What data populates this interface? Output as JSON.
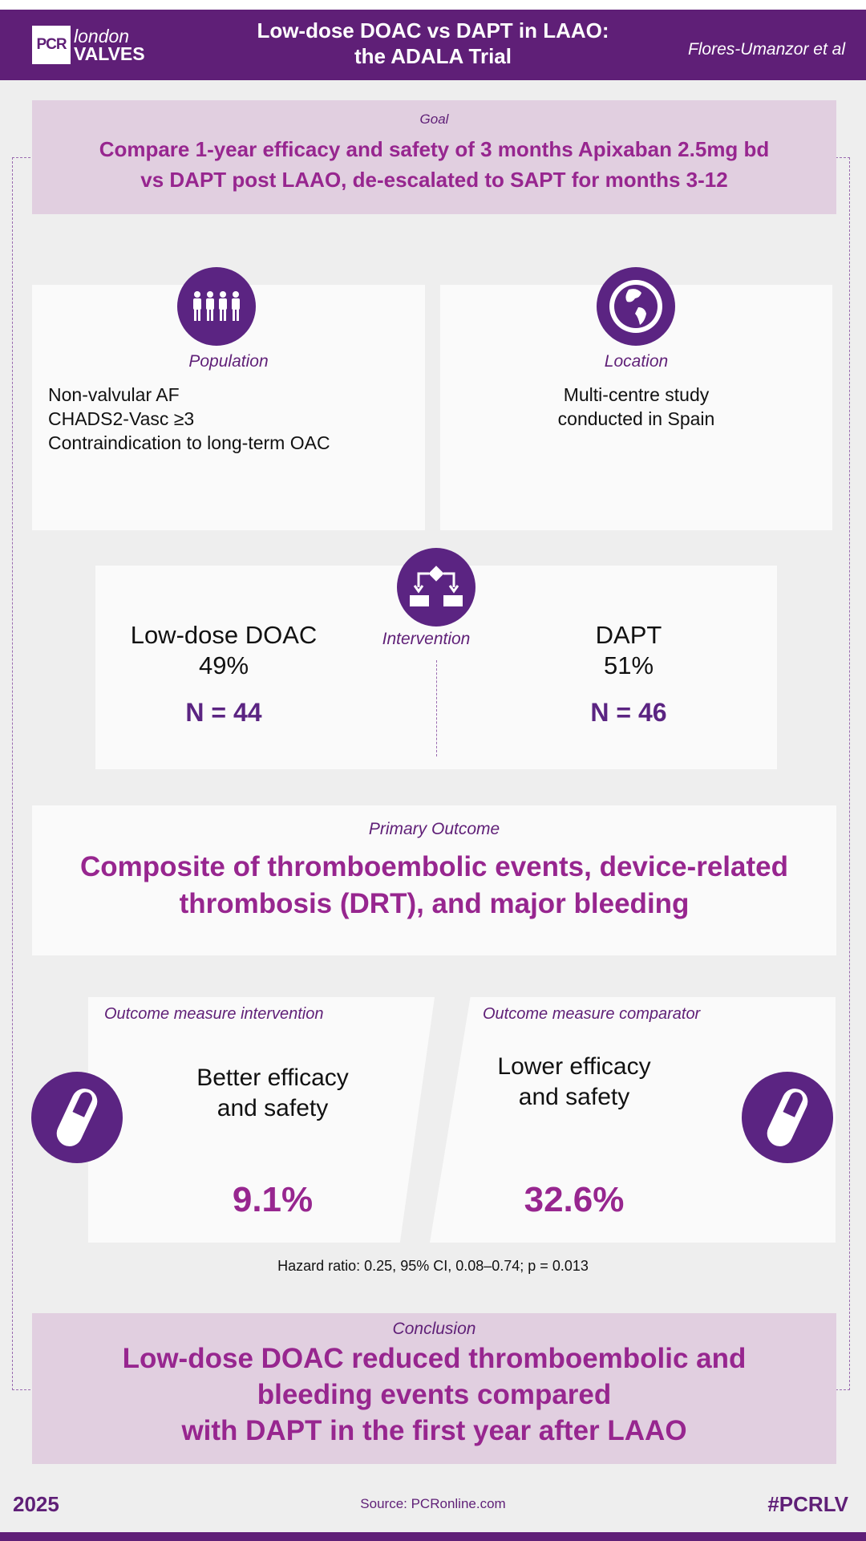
{
  "header": {
    "logo_box": "PCR",
    "logo_line1": "london",
    "logo_line2": "VALVES",
    "title_line1": "Low-dose DOAC vs DAPT in LAAO:",
    "title_line2": "the ADALA Trial",
    "authors": "Flores-Umanzor et al"
  },
  "goal": {
    "label": "Goal",
    "line1": "Compare 1-year efficacy and safety of 3 months Apixaban 2.5mg bd",
    "line2": "vs DAPT post LAAO, de-escalated to SAPT for months 3-12"
  },
  "population": {
    "icon": "people-icon",
    "label": "Population",
    "items": [
      "Non-valvular AF",
      "CHADS2-Vasc ≥3",
      "Contraindication to long-term OAC"
    ]
  },
  "location": {
    "icon": "globe-icon",
    "label": "Location",
    "line1": "Multi-centre study",
    "line2": "conducted in Spain"
  },
  "intervention": {
    "icon": "flowchart-icon",
    "label": "Intervention",
    "left": {
      "name": "Low-dose DOAC",
      "pct": "49%",
      "n": "N = 44"
    },
    "right": {
      "name": "DAPT",
      "pct": "51%",
      "n": "N = 46"
    }
  },
  "primary": {
    "label": "Primary Outcome",
    "line1": "Composite of thromboembolic events, device-related",
    "line2": "thrombosis (DRT), and major bleeding"
  },
  "outcomes": {
    "intervention": {
      "label": "Outcome measure intervention",
      "line1": "Better efficacy",
      "line2": "and safety",
      "value": "9.1%"
    },
    "comparator": {
      "label": "Outcome measure comparator",
      "line1": "Lower efficacy",
      "line2": "and safety",
      "value": "32.6%"
    },
    "icon": "pill-icon",
    "hazard": "Hazard ratio: 0.25, 95% CI, 0.08–0.74; p = 0.013"
  },
  "conclusion": {
    "label": "Conclusion",
    "line1": "Low-dose DOAC reduced thromboembolic and",
    "line2": "bleeding events compared",
    "line3": "with DAPT in the first year after LAAO"
  },
  "footer": {
    "year": "2025",
    "source": "Source: PCRonline.com",
    "hashtag": "#PCRLV"
  },
  "colors": {
    "brand_purple": "#5f1f77",
    "icon_purple": "#5b2482",
    "magenta": "#97268f",
    "pink_box": "#e1cfe0",
    "background": "#eeeeee"
  }
}
